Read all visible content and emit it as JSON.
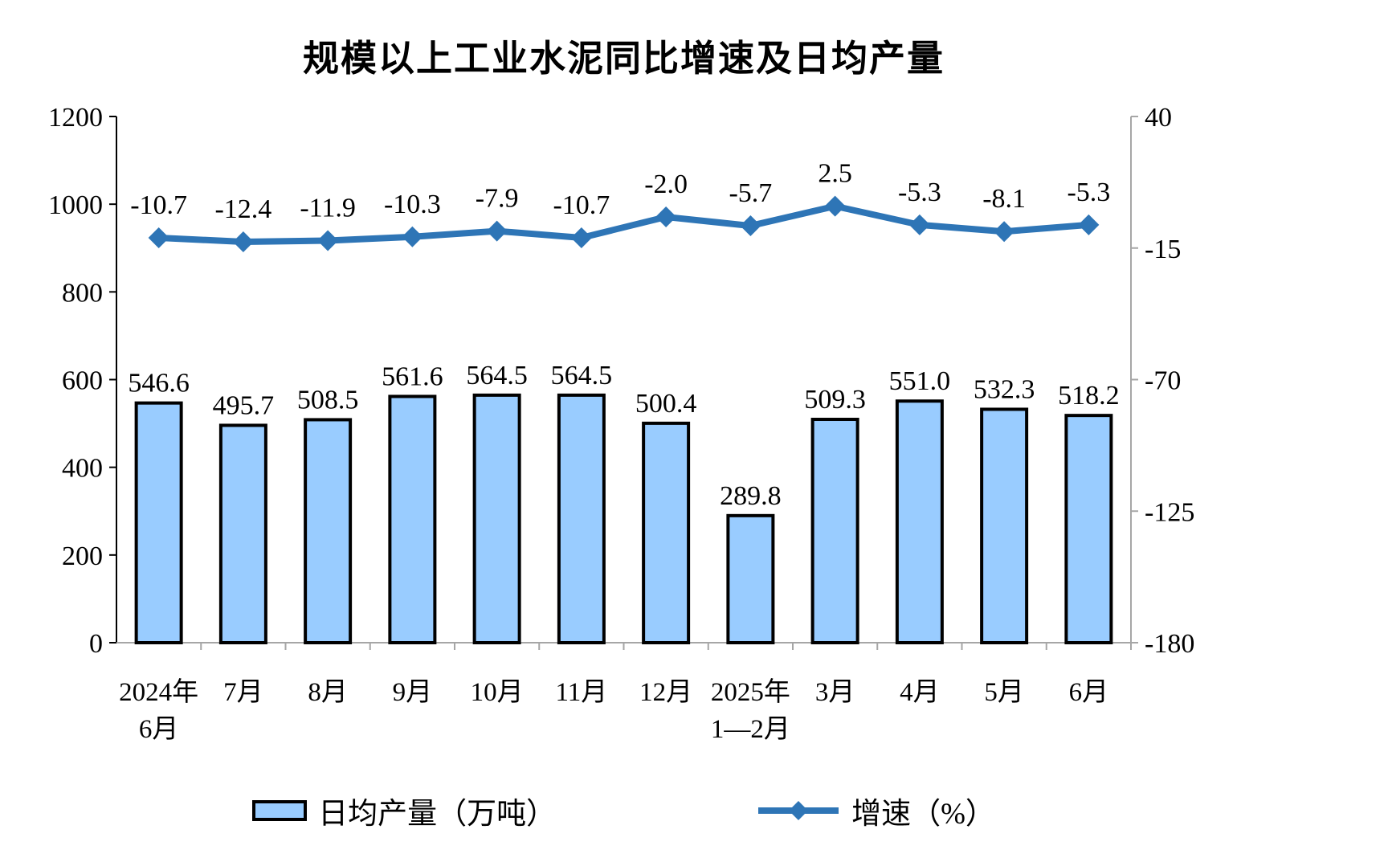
{
  "title": "规模以上工业水泥同比增速及日均产量",
  "colors": {
    "bar_fill": "#99CCFF",
    "bar_border": "#000000",
    "line": "#2E75B6",
    "axis": "#A6A6A6",
    "text": "#000000"
  },
  "legend": {
    "bar_label": "日均产量（万吨）",
    "line_label": "增速（%）"
  },
  "chart_data": {
    "type": "bar+line combo",
    "title": "规模以上工业水泥同比增速及日均产量",
    "categories": [
      "2024年\n6月",
      "7月",
      "8月",
      "9月",
      "10月",
      "11月",
      "12月",
      "2025年\n1—2月",
      "3月",
      "4月",
      "5月",
      "6月"
    ],
    "series": [
      {
        "name": "日均产量（万吨）",
        "type": "bar",
        "axis": "left",
        "values": [
          546.6,
          495.7,
          508.5,
          561.6,
          564.5,
          564.5,
          500.4,
          289.8,
          509.3,
          551.0,
          532.3,
          518.2
        ]
      },
      {
        "name": "增速（%）",
        "type": "line",
        "axis": "right",
        "values": [
          -10.7,
          -12.4,
          -11.9,
          -10.3,
          -7.9,
          -10.7,
          -2.0,
          -5.7,
          2.5,
          -5.3,
          -8.1,
          -5.3
        ]
      }
    ],
    "left_axis": {
      "min": 0,
      "max": 1200,
      "ticks": [
        0,
        200,
        400,
        600,
        800,
        1000,
        1200
      ]
    },
    "right_axis": {
      "min": -180,
      "max": 40,
      "ticks": [
        40,
        -15,
        -70,
        -125,
        -180
      ]
    },
    "grid": false,
    "legend_position": "bottom"
  }
}
